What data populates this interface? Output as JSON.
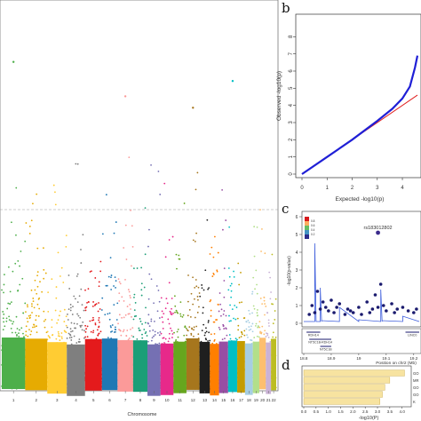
{
  "panels": {
    "a": {
      "letter": ""
    },
    "b": {
      "letter": "b"
    },
    "c": {
      "letter": "c"
    },
    "d": {
      "letter": "d"
    }
  },
  "colors": {
    "chromosome_palette": [
      "#4daf4a",
      "#e6ab02",
      "#ffcc33",
      "#7f7f7f",
      "#e41a1c",
      "#1f78b4",
      "#fb9a99",
      "#1b9e77",
      "#7570b3",
      "#e7298a",
      "#66a61e",
      "#a6761d",
      "#1f1f1f",
      "#ff7f00",
      "#984ea3",
      "#00bfc4",
      "#c49c00",
      "#a6cee3",
      "#b2df8a",
      "#fdbf6f",
      "#cab2d6",
      "#bcbd22"
    ],
    "qq_points": "#1f1fd6",
    "qq_line": "#e02020",
    "bars": "#f7e3a0",
    "bar_edge": "#c9a94a",
    "ld_legend": [
      "#d7191c",
      "#fdae61",
      "#66bd63",
      "#4393c3",
      "#2c2c8c"
    ]
  },
  "chart_data": [
    {
      "panel": "a",
      "type": "scatter",
      "kind": "manhattan",
      "title": "",
      "xlabel": "Chromosome",
      "ylabel": "",
      "x_ticks": [
        "1",
        "2",
        "3",
        "4",
        "5",
        "6",
        "7",
        "8",
        "9",
        "10",
        "11",
        "12",
        "13",
        "14",
        "15",
        "16",
        "17",
        "18",
        "19",
        "20",
        "21",
        "22"
      ],
      "threshold_line": "dashed gray horizontal",
      "highlighted_top_hits": [
        {
          "chromosome": "1",
          "relative_height": 0.81
        },
        {
          "chromosome": "7",
          "relative_height": 0.72
        },
        {
          "chromosome": "12",
          "relative_height": 0.69
        },
        {
          "chromosome": "16",
          "relative_height": 0.76
        }
      ]
    },
    {
      "panel": "b",
      "type": "scatter",
      "kind": "qq",
      "xlabel": "Expected -log10(p)",
      "ylabel": "Observed -log10(p)",
      "xlim": [
        0,
        4.6
      ],
      "ylim": [
        0,
        9
      ],
      "x_ticks": [
        "0",
        "1",
        "2",
        "3",
        "4"
      ],
      "y_ticks": [
        "0",
        "1",
        "2",
        "3",
        "4",
        "5",
        "6",
        "7",
        "8"
      ],
      "curve": {
        "x": [
          0,
          1,
          2,
          3,
          3.6,
          4.0,
          4.3,
          4.5,
          4.6
        ],
        "y": [
          0,
          1,
          2,
          3.1,
          3.8,
          4.4,
          5.1,
          6.2,
          6.9
        ]
      }
    },
    {
      "panel": "c",
      "type": "scatter",
      "kind": "regional-association",
      "xlabel": "Position on chr2 (Mb)",
      "ylabel": "-log10(p-value)",
      "ylim": [
        0,
        6
      ],
      "y_ticks": [
        "0",
        "1",
        "2",
        "3",
        "4",
        "5",
        "6"
      ],
      "x_ticks": [
        "18.8",
        "18.9",
        "19",
        "19.1",
        "19.2"
      ],
      "top_snp": {
        "label": "rs183012802",
        "position": 19.07,
        "value": 5.1
      },
      "legend_values": [
        "0.8",
        "0.6",
        "0.4",
        "0.2"
      ],
      "genes": [
        "KCNS3",
        "MYCN",
        "RDH14",
        "NT5C1B-RDH14",
        "NT5C1B",
        "LINC0"
      ],
      "points": [
        {
          "x": 18.82,
          "y": 0.5
        },
        {
          "x": 18.83,
          "y": 1.0
        },
        {
          "x": 18.84,
          "y": 0.6
        },
        {
          "x": 18.85,
          "y": 1.8
        },
        {
          "x": 18.86,
          "y": 0.8
        },
        {
          "x": 18.87,
          "y": 1.2
        },
        {
          "x": 18.88,
          "y": 0.9
        },
        {
          "x": 18.89,
          "y": 0.7
        },
        {
          "x": 18.9,
          "y": 1.3
        },
        {
          "x": 18.91,
          "y": 0.6
        },
        {
          "x": 18.92,
          "y": 0.9
        },
        {
          "x": 18.93,
          "y": 1.1
        },
        {
          "x": 18.95,
          "y": 0.5
        },
        {
          "x": 18.96,
          "y": 0.8
        },
        {
          "x": 18.97,
          "y": 0.7
        },
        {
          "x": 18.98,
          "y": 0.6
        },
        {
          "x": 19.0,
          "y": 0.9
        },
        {
          "x": 19.01,
          "y": 0.5
        },
        {
          "x": 19.03,
          "y": 1.2
        },
        {
          "x": 19.04,
          "y": 0.6
        },
        {
          "x": 19.05,
          "y": 0.8
        },
        {
          "x": 19.06,
          "y": 1.6
        },
        {
          "x": 19.07,
          "y": 0.9
        },
        {
          "x": 19.08,
          "y": 2.2
        },
        {
          "x": 19.09,
          "y": 1.0
        },
        {
          "x": 19.1,
          "y": 0.7
        },
        {
          "x": 19.12,
          "y": 1.1
        },
        {
          "x": 19.13,
          "y": 0.6
        },
        {
          "x": 19.14,
          "y": 0.8
        },
        {
          "x": 19.16,
          "y": 0.9
        },
        {
          "x": 19.18,
          "y": 0.7
        },
        {
          "x": 19.2,
          "y": 0.6
        },
        {
          "x": 19.21,
          "y": 0.8
        }
      ]
    },
    {
      "panel": "d",
      "type": "bar",
      "orientation": "horizontal",
      "xlabel": "-log10(P)",
      "xlim": [
        0,
        4.3
      ],
      "x_ticks": [
        "0.0",
        "0.5",
        "1.0",
        "1.5",
        "2.0",
        "2.5",
        "3.0",
        "3.5",
        "4.0"
      ],
      "categories": [
        "GO",
        "MR",
        "GO",
        "GO",
        "K"
      ],
      "values": [
        4.1,
        3.5,
        3.3,
        3.2,
        3.1
      ]
    }
  ]
}
